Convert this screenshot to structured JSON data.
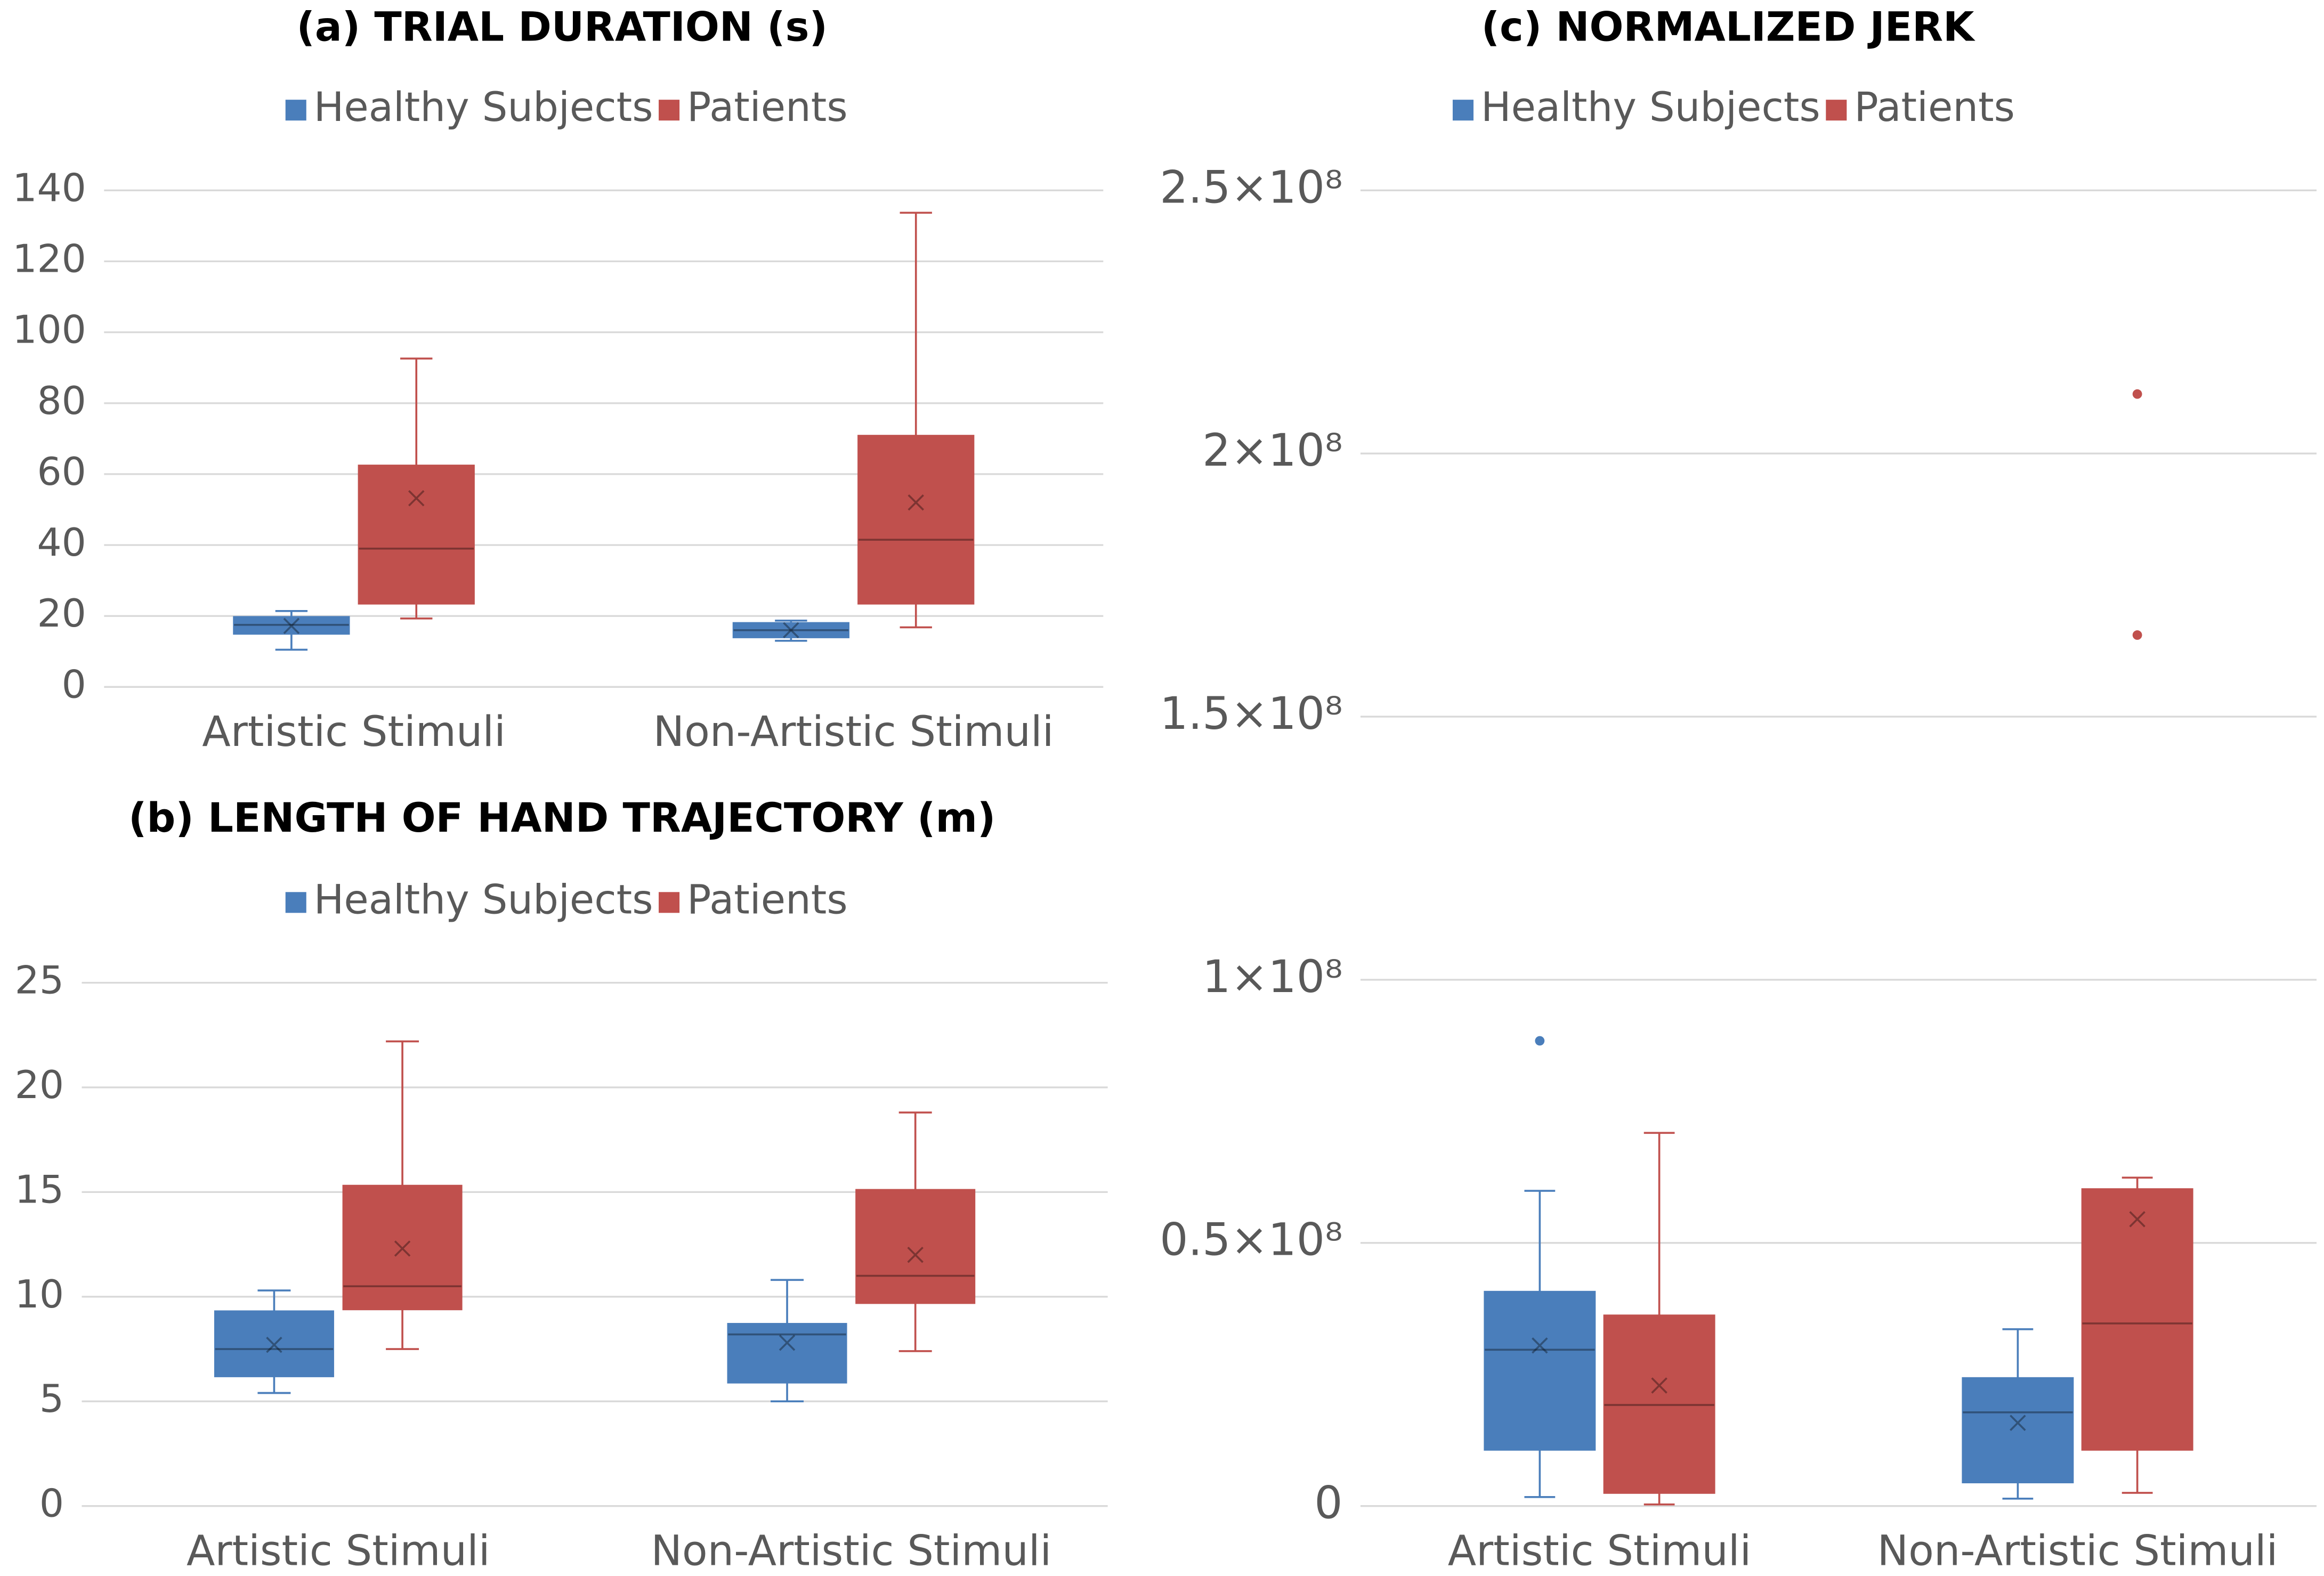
{
  "chart_data": [
    {
      "type": "box",
      "title": "(a) TRIAL DURATION (s)",
      "categories": [
        "Artistic Stimuli",
        "Non-Artistic Stimuli"
      ],
      "series": [
        {
          "name": "Healthy Subjects",
          "color": "#4a7ebb",
          "values": [
            {
              "min": 10.5,
              "q1": 15,
              "median": 17.5,
              "q3": 19.7,
              "max": 21.4,
              "mean": 17.2
            },
            {
              "min": 13,
              "q1": 14,
              "median": 16,
              "q3": 18,
              "max": 18.7,
              "mean": 16
            }
          ]
        },
        {
          "name": "Patients",
          "color": "#c0504d",
          "values": [
            {
              "min": 19.3,
              "q1": 23.5,
              "median": 39,
              "q3": 62.4,
              "max": 92.6,
              "mean": 53.2
            },
            {
              "min": 16.8,
              "q1": 23.5,
              "median": 41.5,
              "q3": 70.8,
              "max": 133.7,
              "mean": 52
            }
          ]
        }
      ],
      "ylim": [
        0,
        140
      ],
      "yticks": [
        0,
        20,
        40,
        60,
        80,
        100,
        120,
        140
      ],
      "grid": true,
      "legend": "top"
    },
    {
      "type": "box",
      "title": "(b) LENGTH OF HAND TRAJECTORY (m)",
      "categories": [
        "Artistic Stimuli",
        "Non-Artistic Stimuli"
      ],
      "series": [
        {
          "name": "Healthy Subjects",
          "color": "#4a7ebb",
          "values": [
            {
              "min": 5.4,
              "q1": 6.2,
              "median": 7.5,
              "q3": 9.3,
              "max": 10.3,
              "mean": 7.7
            },
            {
              "min": 5.0,
              "q1": 5.9,
              "median": 8.2,
              "q3": 8.7,
              "max": 10.8,
              "mean": 7.8
            }
          ]
        },
        {
          "name": "Patients",
          "color": "#c0504d",
          "values": [
            {
              "min": 7.5,
              "q1": 9.4,
              "median": 10.5,
              "q3": 15.3,
              "max": 22.2,
              "mean": 12.3
            },
            {
              "min": 7.4,
              "q1": 9.7,
              "median": 11,
              "q3": 15.1,
              "max": 18.8,
              "mean": 12
            }
          ]
        }
      ],
      "ylim": [
        0,
        25
      ],
      "yticks": [
        0,
        5,
        10,
        15,
        20,
        25
      ],
      "grid": true,
      "legend": "top"
    },
    {
      "type": "box",
      "title": "(c) NORMALIZED JERK",
      "categories": [
        "Artistic Stimuli",
        "Non-Artistic Stimuli"
      ],
      "series": [
        {
          "name": "Healthy Subjects",
          "color": "#4a7ebb",
          "values": [
            {
              "min": 1700000,
              "q1": 10700000,
              "median": 29700000,
              "q3": 40700000,
              "max": 59900000,
              "mean": 30500000,
              "outliers": [
                88400000
              ]
            },
            {
              "min": 1400000,
              "q1": 4500000,
              "median": 17800000,
              "q3": 24300000,
              "max": 33600000,
              "mean": 15800000
            }
          ]
        },
        {
          "name": "Patients",
          "color": "#c0504d",
          "values": [
            {
              "min": 300000,
              "q1": 2500000,
              "median": 19200000,
              "q3": 36200000,
              "max": 70900000,
              "mean": 22900000
            },
            {
              "min": 2500000,
              "q1": 10700000,
              "median": 34700000,
              "q3": 60200000,
              "max": 62400000,
              "mean": 54500000,
              "outliers": [
                165500000,
                211300000
              ]
            }
          ]
        }
      ],
      "ylim": [
        0,
        250000000
      ],
      "yticks": [
        0,
        {
          "value": 50000000,
          "label": "0.5×10⁸"
        },
        {
          "value": 100000000,
          "label": "1×10⁸"
        },
        {
          "value": 150000000,
          "label": "1.5×10⁸"
        },
        {
          "value": 200000000,
          "label": "2×10⁸"
        },
        {
          "value": 250000000,
          "label": "2.5×10⁸"
        }
      ],
      "grid": true,
      "legend": "top"
    }
  ]
}
